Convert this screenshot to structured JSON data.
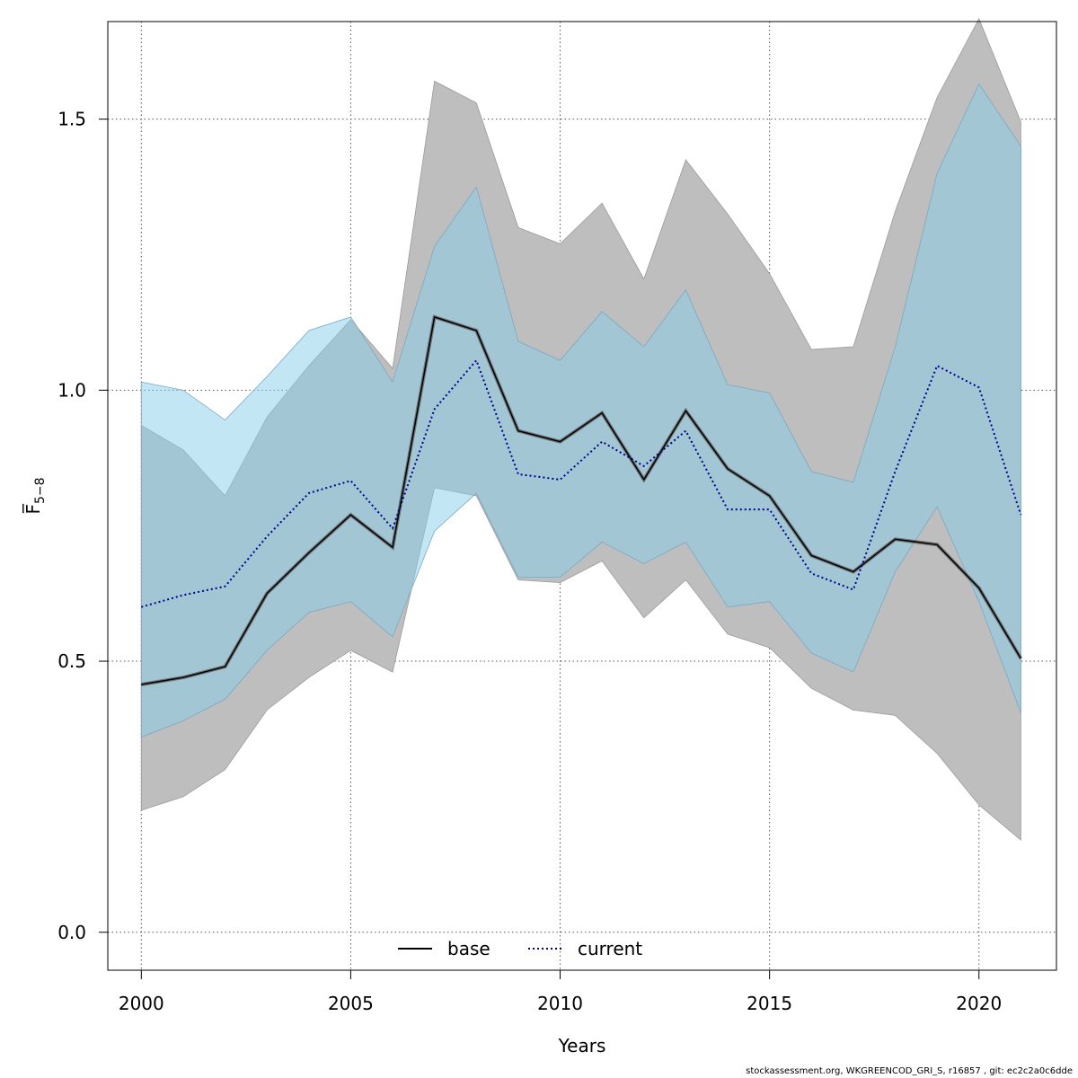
{
  "chart_data": {
    "type": "line",
    "xlabel": "Years",
    "ylabel": "F̅",
    "ylabel_sub": "5−8",
    "xlim": [
      1999.2,
      2021.85
    ],
    "ylim": [
      -0.07,
      1.68
    ],
    "xticks": [
      2000,
      2005,
      2010,
      2015,
      2020
    ],
    "yticks": [
      0.0,
      0.5,
      1.0,
      1.5
    ],
    "ytick_labels": [
      "0.0",
      "0.5",
      "1.0",
      "1.5"
    ],
    "grid": true,
    "legend_position": "bottom",
    "x": [
      2000,
      2001,
      2002,
      2003,
      2004,
      2005,
      2006,
      2007,
      2008,
      2009,
      2010,
      2011,
      2012,
      2013,
      2014,
      2015,
      2016,
      2017,
      2018,
      2019,
      2020,
      2021
    ],
    "series": [
      {
        "name": "base",
        "style": "solid",
        "color": "#000000",
        "band_color": "#bebebe",
        "values": [
          0.457,
          0.47,
          0.49,
          0.625,
          0.7,
          0.77,
          0.71,
          1.135,
          1.11,
          0.925,
          0.905,
          0.958,
          0.835,
          0.962,
          0.855,
          0.805,
          0.695,
          0.665,
          0.725,
          0.715,
          0.635,
          0.505
        ],
        "lower": [
          0.225,
          0.25,
          0.3,
          0.41,
          0.47,
          0.52,
          0.48,
          0.82,
          0.805,
          0.65,
          0.645,
          0.685,
          0.58,
          0.65,
          0.55,
          0.525,
          0.45,
          0.41,
          0.4,
          0.33,
          0.235,
          0.17
        ],
        "upper": [
          0.935,
          0.89,
          0.805,
          0.95,
          1.045,
          1.13,
          1.04,
          1.57,
          1.53,
          1.3,
          1.27,
          1.345,
          1.205,
          1.425,
          1.325,
          1.215,
          1.075,
          1.08,
          1.33,
          1.54,
          1.685,
          1.495
        ]
      },
      {
        "name": "current",
        "style": "dotted",
        "color": "#00008b",
        "band_color": "#87ceeb",
        "values": [
          0.6,
          0.622,
          0.638,
          0.73,
          0.81,
          0.833,
          0.745,
          0.965,
          1.055,
          0.845,
          0.835,
          0.905,
          0.86,
          0.925,
          0.78,
          0.78,
          0.662,
          0.632,
          0.85,
          1.045,
          1.005,
          0.77
        ],
        "lower": [
          0.36,
          0.39,
          0.43,
          0.52,
          0.59,
          0.61,
          0.545,
          0.74,
          0.81,
          0.655,
          0.655,
          0.72,
          0.68,
          0.72,
          0.6,
          0.61,
          0.515,
          0.48,
          0.665,
          0.785,
          0.61,
          0.405
        ],
        "upper": [
          1.015,
          1.0,
          0.945,
          1.025,
          1.11,
          1.135,
          1.015,
          1.265,
          1.375,
          1.09,
          1.055,
          1.145,
          1.08,
          1.185,
          1.01,
          0.995,
          0.85,
          0.83,
          1.08,
          1.4,
          1.565,
          1.45
        ]
      }
    ]
  },
  "footer": "stockassessment.org, WKGREENCOD_GRI_S, r16857 , git: ec2c2a0c6dde"
}
